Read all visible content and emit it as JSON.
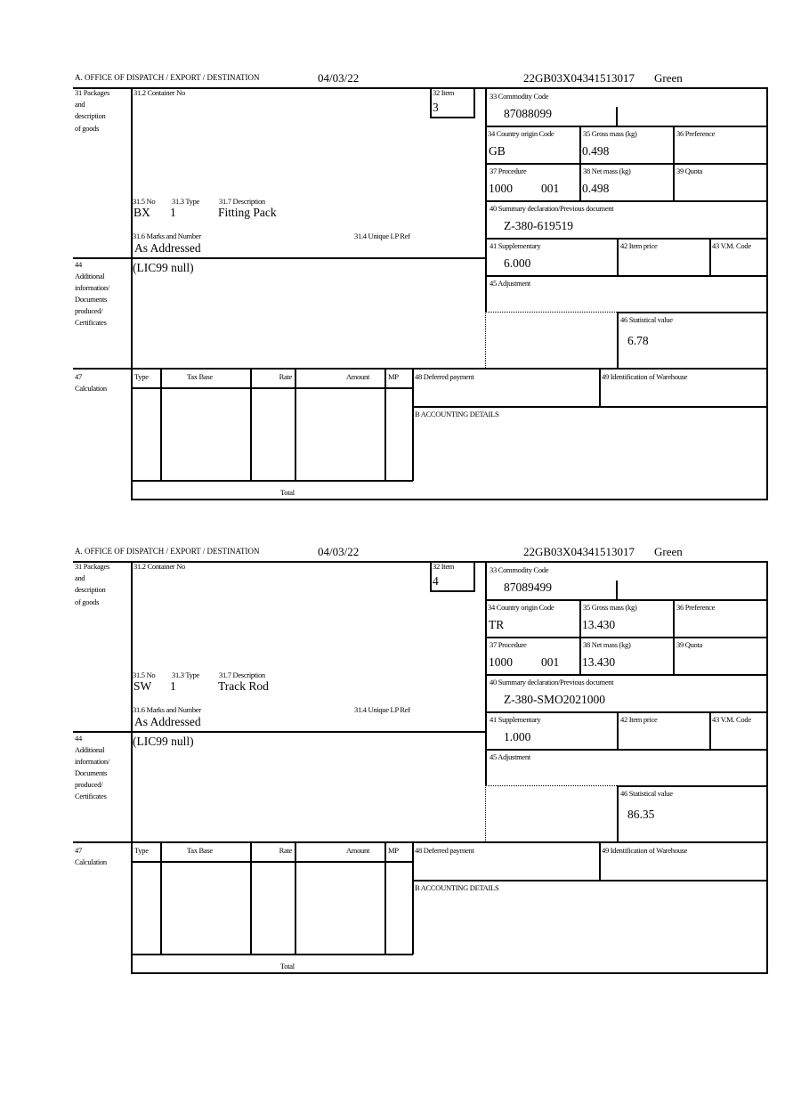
{
  "labels": {
    "office": "A. OFFICE OF DISPATCH / EXPORT / DESTINATION",
    "packages": [
      "31 Packages",
      "and",
      "description",
      "of goods"
    ],
    "container_no": "31.2 Container No",
    "item": "32 Item",
    "no": "31.5 No",
    "type": "31.3 Type",
    "description": "31.7 Description",
    "marks": "31.6 Marks and Number",
    "unique_lp": "31.4 Unique LP Ref",
    "additional": [
      "44",
      "Additional",
      "information/",
      "Documents",
      "produced/",
      "Certificates"
    ],
    "calculation": [
      "47",
      "Calculation"
    ],
    "calc_headers": [
      "Type",
      "Tax Base",
      "Rate",
      "Amount",
      "MP"
    ],
    "total": "Total",
    "deferred": "48 Deferred payment",
    "warehouse": "49 Identification of Warehouse",
    "accounting": "B ACCOUNTING DETAILS",
    "commodity": "33 Commodity Code",
    "country": "34 Country origin Code",
    "gross": "35 Gross mass (kg)",
    "preference": "36 Preference",
    "procedure": "37 Procedure",
    "net": "38 Net mass (kg)",
    "quota": "39 Quota",
    "summary": "40 Summary declaration/Previous document",
    "supplementary": "41 Supplementary",
    "item_price": "42 Item price",
    "vm_code": "43 V.M. Code",
    "adjustment": "45 Adjustment",
    "statistical": "46 Statistical value"
  },
  "forms": [
    {
      "date": "04/03/22",
      "reference": "22GB03X04341513017",
      "route": "Green",
      "item": "3",
      "no": "BX",
      "type": "1",
      "description": "Fitting Pack",
      "marks": "As Addressed",
      "additional_info": "(LIC99 null)",
      "commodity": "87088099",
      "country": "GB",
      "gross": "0.498",
      "procedure": "1000",
      "procedure_add": "001",
      "net": "0.498",
      "summary": "Z-380-619519",
      "supplementary": "6.000",
      "statistical": "6.78"
    },
    {
      "date": "04/03/22",
      "reference": "22GB03X04341513017",
      "route": "Green",
      "item": "4",
      "no": "SW",
      "type": "1",
      "description": "Track Rod",
      "marks": "As Addressed",
      "additional_info": "(LIC99 null)",
      "commodity": "87089499",
      "country": "TR",
      "gross": "13.430",
      "procedure": "1000",
      "procedure_add": "001",
      "net": "13.430",
      "summary": "Z-380-SMO2021000",
      "supplementary": "1.000",
      "statistical": "86.35"
    }
  ]
}
